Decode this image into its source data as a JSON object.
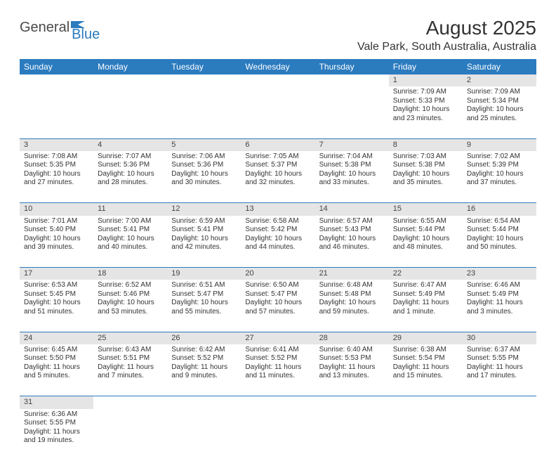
{
  "logo": {
    "word1": "General",
    "word2": "Blue"
  },
  "title": "August 2025",
  "location": "Vale Park, South Australia, Australia",
  "colors": {
    "header_bg": "#2b7bbf",
    "header_text": "#ffffff",
    "daynum_bg": "#e5e5e5",
    "text": "#333333",
    "rule": "#2b7bbf"
  },
  "fonts": {
    "title_size_pt": 21,
    "location_size_pt": 12,
    "weekday_size_pt": 9,
    "cell_size_pt": 7.5,
    "daynum_size_pt": 8.5
  },
  "weekdays": [
    "Sunday",
    "Monday",
    "Tuesday",
    "Wednesday",
    "Thursday",
    "Friday",
    "Saturday"
  ],
  "weeks": [
    [
      null,
      null,
      null,
      null,
      null,
      {
        "n": "1",
        "sr": "Sunrise: 7:09 AM",
        "ss": "Sunset: 5:33 PM",
        "d1": "Daylight: 10 hours",
        "d2": "and 23 minutes."
      },
      {
        "n": "2",
        "sr": "Sunrise: 7:09 AM",
        "ss": "Sunset: 5:34 PM",
        "d1": "Daylight: 10 hours",
        "d2": "and 25 minutes."
      }
    ],
    [
      {
        "n": "3",
        "sr": "Sunrise: 7:08 AM",
        "ss": "Sunset: 5:35 PM",
        "d1": "Daylight: 10 hours",
        "d2": "and 27 minutes."
      },
      {
        "n": "4",
        "sr": "Sunrise: 7:07 AM",
        "ss": "Sunset: 5:36 PM",
        "d1": "Daylight: 10 hours",
        "d2": "and 28 minutes."
      },
      {
        "n": "5",
        "sr": "Sunrise: 7:06 AM",
        "ss": "Sunset: 5:36 PM",
        "d1": "Daylight: 10 hours",
        "d2": "and 30 minutes."
      },
      {
        "n": "6",
        "sr": "Sunrise: 7:05 AM",
        "ss": "Sunset: 5:37 PM",
        "d1": "Daylight: 10 hours",
        "d2": "and 32 minutes."
      },
      {
        "n": "7",
        "sr": "Sunrise: 7:04 AM",
        "ss": "Sunset: 5:38 PM",
        "d1": "Daylight: 10 hours",
        "d2": "and 33 minutes."
      },
      {
        "n": "8",
        "sr": "Sunrise: 7:03 AM",
        "ss": "Sunset: 5:38 PM",
        "d1": "Daylight: 10 hours",
        "d2": "and 35 minutes."
      },
      {
        "n": "9",
        "sr": "Sunrise: 7:02 AM",
        "ss": "Sunset: 5:39 PM",
        "d1": "Daylight: 10 hours",
        "d2": "and 37 minutes."
      }
    ],
    [
      {
        "n": "10",
        "sr": "Sunrise: 7:01 AM",
        "ss": "Sunset: 5:40 PM",
        "d1": "Daylight: 10 hours",
        "d2": "and 39 minutes."
      },
      {
        "n": "11",
        "sr": "Sunrise: 7:00 AM",
        "ss": "Sunset: 5:41 PM",
        "d1": "Daylight: 10 hours",
        "d2": "and 40 minutes."
      },
      {
        "n": "12",
        "sr": "Sunrise: 6:59 AM",
        "ss": "Sunset: 5:41 PM",
        "d1": "Daylight: 10 hours",
        "d2": "and 42 minutes."
      },
      {
        "n": "13",
        "sr": "Sunrise: 6:58 AM",
        "ss": "Sunset: 5:42 PM",
        "d1": "Daylight: 10 hours",
        "d2": "and 44 minutes."
      },
      {
        "n": "14",
        "sr": "Sunrise: 6:57 AM",
        "ss": "Sunset: 5:43 PM",
        "d1": "Daylight: 10 hours",
        "d2": "and 46 minutes."
      },
      {
        "n": "15",
        "sr": "Sunrise: 6:55 AM",
        "ss": "Sunset: 5:44 PM",
        "d1": "Daylight: 10 hours",
        "d2": "and 48 minutes."
      },
      {
        "n": "16",
        "sr": "Sunrise: 6:54 AM",
        "ss": "Sunset: 5:44 PM",
        "d1": "Daylight: 10 hours",
        "d2": "and 50 minutes."
      }
    ],
    [
      {
        "n": "17",
        "sr": "Sunrise: 6:53 AM",
        "ss": "Sunset: 5:45 PM",
        "d1": "Daylight: 10 hours",
        "d2": "and 51 minutes."
      },
      {
        "n": "18",
        "sr": "Sunrise: 6:52 AM",
        "ss": "Sunset: 5:46 PM",
        "d1": "Daylight: 10 hours",
        "d2": "and 53 minutes."
      },
      {
        "n": "19",
        "sr": "Sunrise: 6:51 AM",
        "ss": "Sunset: 5:47 PM",
        "d1": "Daylight: 10 hours",
        "d2": "and 55 minutes."
      },
      {
        "n": "20",
        "sr": "Sunrise: 6:50 AM",
        "ss": "Sunset: 5:47 PM",
        "d1": "Daylight: 10 hours",
        "d2": "and 57 minutes."
      },
      {
        "n": "21",
        "sr": "Sunrise: 6:48 AM",
        "ss": "Sunset: 5:48 PM",
        "d1": "Daylight: 10 hours",
        "d2": "and 59 minutes."
      },
      {
        "n": "22",
        "sr": "Sunrise: 6:47 AM",
        "ss": "Sunset: 5:49 PM",
        "d1": "Daylight: 11 hours",
        "d2": "and 1 minute."
      },
      {
        "n": "23",
        "sr": "Sunrise: 6:46 AM",
        "ss": "Sunset: 5:49 PM",
        "d1": "Daylight: 11 hours",
        "d2": "and 3 minutes."
      }
    ],
    [
      {
        "n": "24",
        "sr": "Sunrise: 6:45 AM",
        "ss": "Sunset: 5:50 PM",
        "d1": "Daylight: 11 hours",
        "d2": "and 5 minutes."
      },
      {
        "n": "25",
        "sr": "Sunrise: 6:43 AM",
        "ss": "Sunset: 5:51 PM",
        "d1": "Daylight: 11 hours",
        "d2": "and 7 minutes."
      },
      {
        "n": "26",
        "sr": "Sunrise: 6:42 AM",
        "ss": "Sunset: 5:52 PM",
        "d1": "Daylight: 11 hours",
        "d2": "and 9 minutes."
      },
      {
        "n": "27",
        "sr": "Sunrise: 6:41 AM",
        "ss": "Sunset: 5:52 PM",
        "d1": "Daylight: 11 hours",
        "d2": "and 11 minutes."
      },
      {
        "n": "28",
        "sr": "Sunrise: 6:40 AM",
        "ss": "Sunset: 5:53 PM",
        "d1": "Daylight: 11 hours",
        "d2": "and 13 minutes."
      },
      {
        "n": "29",
        "sr": "Sunrise: 6:38 AM",
        "ss": "Sunset: 5:54 PM",
        "d1": "Daylight: 11 hours",
        "d2": "and 15 minutes."
      },
      {
        "n": "30",
        "sr": "Sunrise: 6:37 AM",
        "ss": "Sunset: 5:55 PM",
        "d1": "Daylight: 11 hours",
        "d2": "and 17 minutes."
      }
    ],
    [
      {
        "n": "31",
        "sr": "Sunrise: 6:36 AM",
        "ss": "Sunset: 5:55 PM",
        "d1": "Daylight: 11 hours",
        "d2": "and 19 minutes."
      },
      null,
      null,
      null,
      null,
      null,
      null
    ]
  ]
}
